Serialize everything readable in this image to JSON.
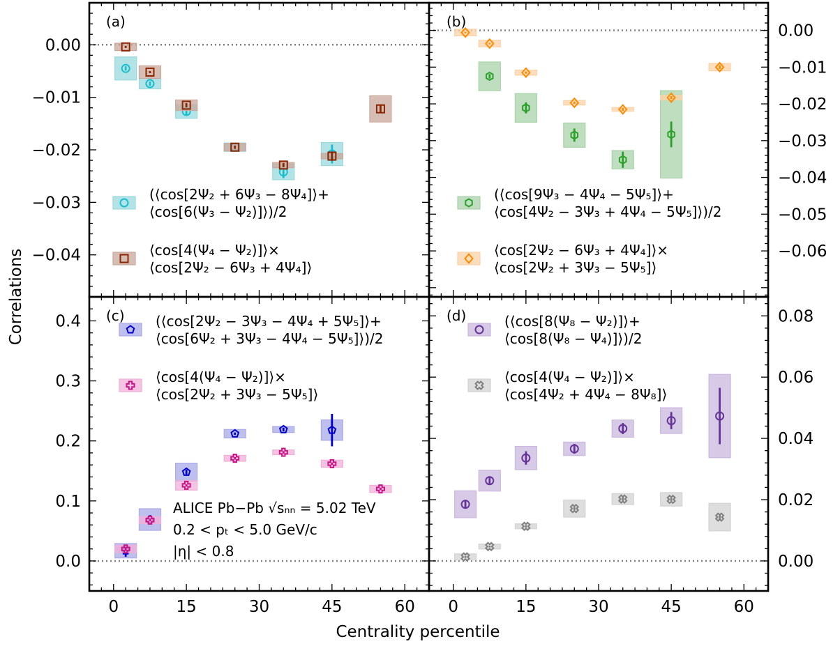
{
  "figure": {
    "xlabel": "Centrality percentile",
    "ylabel": "Correlations",
    "note_lines": [
      "ALICE Pb−Pb √sₙₙ = 5.02 TeV",
      "0.2 < pₜ < 5.0 GeV/c",
      "|η| < 0.8"
    ]
  },
  "chart_data": [
    {
      "type": "scatter",
      "panel": "(a)",
      "xlim": [
        -5,
        65
      ],
      "ylim": [
        -0.048,
        0.008
      ],
      "xticks": [
        0,
        15,
        30,
        45,
        60
      ],
      "yticks": [
        0.0,
        -0.01,
        -0.02,
        -0.03,
        -0.04
      ],
      "ytick_labels": [
        "0.00",
        "−0.01",
        "−0.02",
        "−0.03",
        "−0.04"
      ],
      "ytick_side": "left",
      "zero_line": true,
      "series": [
        {
          "name": "(⟨cos[2Ψ₂ + 6Ψ₃ − 8Ψ₄]⟩+ ⟨cos[6(Ψ₃ − Ψ₂)]⟩)/2",
          "legend_lines": [
            "(⟨cos[2Ψ₂ + 6Ψ₃ − 8Ψ₄]⟩+",
            "⟨cos[6(Ψ₃ − Ψ₂)]⟩)/2"
          ],
          "marker": "circle",
          "color": "#17becf",
          "box_color": "#9ad9de",
          "x": [
            2.5,
            7.5,
            15,
            25,
            35,
            45
          ],
          "y": [
            -0.0045,
            -0.0074,
            -0.0127,
            -0.0195,
            -0.0242,
            -0.0208
          ],
          "stat_err": [
            0.0004,
            0.0004,
            0.0007,
            0.0005,
            0.0012,
            0.0018
          ],
          "sys_err": [
            0.0022,
            0.001,
            0.0013,
            0.0008,
            0.0015,
            0.0022
          ]
        },
        {
          "name": "⟨cos[4(Ψ₄ − Ψ₂)]⟩× ⟨cos[2Ψ₂ − 6Ψ₃ + 4Ψ₄]⟩",
          "legend_lines": [
            "⟨cos[4(Ψ₄ − Ψ₂)]⟩×",
            "⟨cos[2Ψ₂ − 6Ψ₃ + 4Ψ₄]⟩"
          ],
          "marker": "square",
          "color": "#8b2500",
          "box_color": "#c9a89c",
          "x": [
            2.5,
            7.5,
            15,
            25,
            35,
            45,
            55
          ],
          "y": [
            -0.0004,
            -0.0052,
            -0.0115,
            -0.0195,
            -0.0229,
            -0.0212,
            -0.0122
          ],
          "stat_err": [
            0.0002,
            0.0002,
            0.0004,
            0.0003,
            0.0004,
            0.0009,
            0.0008
          ],
          "sys_err": [
            0.0007,
            0.0012,
            0.001,
            0.0007,
            0.0005,
            0.0005,
            0.0025
          ]
        }
      ]
    },
    {
      "type": "scatter",
      "panel": "(b)",
      "xlim": [
        -5,
        65
      ],
      "ylim": [
        -0.0725,
        0.0075
      ],
      "xticks": [
        0,
        15,
        30,
        45,
        60
      ],
      "yticks": [
        0.0,
        -0.01,
        -0.02,
        -0.03,
        -0.04,
        -0.05,
        -0.06
      ],
      "ytick_labels": [
        "0.00",
        "−0.01",
        "−0.02",
        "−0.03",
        "−0.04",
        "−0.05",
        "−0.06"
      ],
      "ytick_side": "right",
      "zero_line": true,
      "series": [
        {
          "name": "(⟨cos[9Ψ₃ − 4Ψ₄ − 5Ψ₅]⟩+ ⟨cos[4Ψ₂ − 3Ψ₃ + 4Ψ₄ − 5Ψ₅]⟩)/2",
          "legend_lines": [
            "(⟨cos[9Ψ₃ − 4Ψ₄ − 5Ψ₅]⟩+",
            "⟨cos[4Ψ₂ − 3Ψ₃ + 4Ψ₄ − 5Ψ₅]⟩)/2"
          ],
          "marker": "hexagon",
          "color": "#2ca02c",
          "box_color": "#a9d3a9",
          "x": [
            7.5,
            15,
            25,
            35,
            45
          ],
          "y": [
            -0.0125,
            -0.0211,
            -0.0285,
            -0.0352,
            -0.0283
          ],
          "stat_err": [
            0.0006,
            0.0015,
            0.0018,
            0.0022,
            0.0035
          ],
          "sys_err": [
            0.0039,
            0.0039,
            0.0033,
            0.0025,
            0.0119
          ]
        },
        {
          "name": "⟨cos[2Ψ₂ − 6Ψ₃ + 4Ψ₄]⟩× ⟨cos[2Ψ₂ + 3Ψ₃ − 5Ψ₅]⟩",
          "legend_lines": [
            "⟨cos[2Ψ₂ − 6Ψ₃ + 4Ψ₄]⟩×",
            "⟨cos[2Ψ₂ + 3Ψ₃ − 5Ψ₅]⟩"
          ],
          "marker": "diamond",
          "color": "#ff8c00",
          "box_color": "#fcd2a8",
          "x": [
            2.5,
            7.5,
            15,
            25,
            35,
            45,
            55
          ],
          "y": [
            -0.0006,
            -0.0036,
            -0.0115,
            -0.0197,
            -0.0215,
            -0.0183,
            -0.01
          ],
          "stat_err": [
            0.0002,
            0.0002,
            0.0003,
            0.0003,
            0.0004,
            0.0004,
            0.0005
          ],
          "sys_err": [
            0.0009,
            0.0009,
            0.0007,
            0.0006,
            0.0005,
            0.0006,
            0.001
          ]
        }
      ]
    },
    {
      "type": "scatter",
      "panel": "(c)",
      "xlim": [
        -5,
        65
      ],
      "ylim": [
        -0.05,
        0.44
      ],
      "xticks": [
        0,
        15,
        30,
        45,
        60
      ],
      "yticks": [
        0.0,
        0.1,
        0.2,
        0.3,
        0.4
      ],
      "ytick_labels": [
        "0.0",
        "0.1",
        "0.2",
        "0.3",
        "0.4"
      ],
      "ytick_side": "left",
      "zero_line": true,
      "series": [
        {
          "name": "(⟨cos[2Ψ₂ − 3Ψ₃ − 4Ψ₄ + 5Ψ₅]⟩+ ⟨cos[6Ψ₂ + 3Ψ₃ − 4Ψ₄ − 5Ψ₅]⟩)/2",
          "legend_lines": [
            "(⟨cos[2Ψ₂ − 3Ψ₃ − 4Ψ₄ + 5Ψ₅]⟩+",
            "⟨cos[6Ψ₂ + 3Ψ₃ − 4Ψ₄ − 5Ψ₅]⟩)/2"
          ],
          "marker": "pentagon",
          "color": "#0000cd",
          "box_color": "#aaaae8",
          "x": [
            2.5,
            7.5,
            15,
            25,
            35,
            45
          ],
          "y": [
            0.017,
            0.069,
            0.148,
            0.212,
            0.219,
            0.218
          ],
          "stat_err": [
            0.01,
            0.003,
            0.004,
            0.002,
            0.003,
            0.027
          ],
          "sys_err": [
            0.012,
            0.018,
            0.015,
            0.007,
            0.005,
            0.017
          ]
        },
        {
          "name": "⟨cos[4(Ψ₄ − Ψ₂)]⟩× ⟨cos[2Ψ₂ + 3Ψ₃ − 5Ψ₅]⟩",
          "legend_lines": [
            "⟨cos[4(Ψ₄ − Ψ₂)]⟩×",
            "⟨cos[2Ψ₂ + 3Ψ₃ − 5Ψ₅]⟩"
          ],
          "marker": "plus",
          "color": "#c71585",
          "box_color": "#f0b0d8",
          "x": [
            2.5,
            7.5,
            15,
            25,
            35,
            45,
            55
          ],
          "y": [
            0.02,
            0.068,
            0.126,
            0.171,
            0.181,
            0.162,
            0.12
          ],
          "stat_err": [
            0.003,
            0.002,
            0.002,
            0.002,
            0.002,
            0.002,
            0.002
          ],
          "sys_err": [
            0.006,
            0.006,
            0.008,
            0.005,
            0.004,
            0.006,
            0.006
          ]
        }
      ]
    },
    {
      "type": "scatter",
      "panel": "(d)",
      "xlim": [
        -5,
        65
      ],
      "ylim": [
        -0.0098,
        0.0862
      ],
      "xticks": [
        0,
        15,
        30,
        45,
        60
      ],
      "yticks": [
        0.0,
        0.02,
        0.04,
        0.06,
        0.08
      ],
      "ytick_labels": [
        "0.00",
        "0.02",
        "0.04",
        "0.06",
        "0.08"
      ],
      "ytick_side": "right",
      "zero_line": true,
      "series": [
        {
          "name": "(⟨cos[8(Ψ₈ − Ψ₂)]⟩+ ⟨cos[8(Ψ₈ − Ψ₄)]⟩)/2",
          "legend_lines": [
            "(⟨cos[8(Ψ₈ − Ψ₂)]⟩+",
            "⟨cos[8(Ψ₈ − Ψ₄)]⟩)/2"
          ],
          "marker": "circle",
          "color": "#663399",
          "box_color": "#cab8de",
          "x": [
            2.5,
            7.5,
            15,
            25,
            35,
            45,
            55
          ],
          "y": [
            0.0185,
            0.0262,
            0.0336,
            0.0366,
            0.0432,
            0.0458,
            0.0473
          ],
          "stat_err": [
            0.0012,
            0.0012,
            0.0022,
            0.0016,
            0.0018,
            0.0028,
            0.0092
          ],
          "sys_err": [
            0.0044,
            0.0034,
            0.0038,
            0.0022,
            0.0028,
            0.0042,
            0.0136
          ]
        },
        {
          "name": "⟨cos[4(Ψ₄ − Ψ₂)]⟩× ⟨cos[4Ψ₂ + 4Ψ₄ − 8Ψ₈]⟩",
          "legend_lines": [
            "⟨cos[4(Ψ₄ − Ψ₂)]⟩×",
            "⟨cos[4Ψ₂ + 4Ψ₄ − 8Ψ₈]⟩"
          ],
          "marker": "cross",
          "color": "#808080",
          "box_color": "#d3d3d3",
          "x": [
            2.5,
            7.5,
            15,
            25,
            35,
            45,
            55
          ],
          "y": [
            0.0013,
            0.0047,
            0.0113,
            0.0171,
            0.0202,
            0.0201,
            0.0143
          ],
          "stat_err": [
            0.0003,
            0.0003,
            0.0004,
            0.0005,
            0.0006,
            0.0005,
            0.0011
          ],
          "sys_err": [
            0.001,
            0.0008,
            0.0008,
            0.0028,
            0.0018,
            0.0022,
            0.0045
          ]
        }
      ]
    }
  ]
}
